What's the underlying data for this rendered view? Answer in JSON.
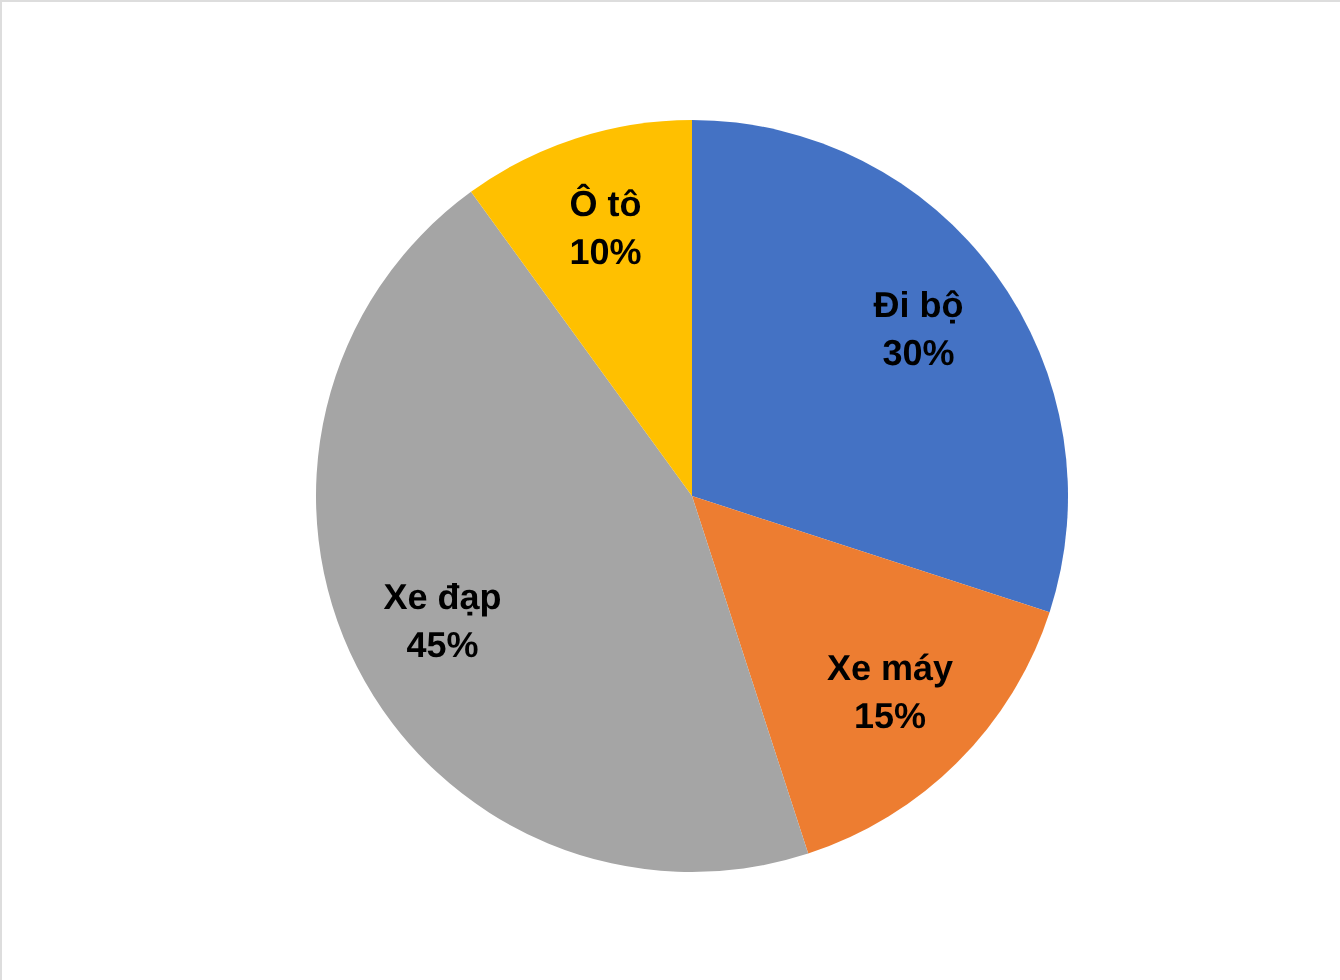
{
  "chart_data": {
    "type": "pie",
    "categories": [
      "Đi bộ",
      "Xe máy",
      "Xe đạp",
      "Ô tô"
    ],
    "values": [
      30,
      15,
      45,
      10
    ],
    "value_labels": [
      "30%",
      "15%",
      "45%",
      "10%"
    ],
    "colors": [
      "#4472c4",
      "#ed7d31",
      "#a5a5a5",
      "#ffc000"
    ]
  }
}
